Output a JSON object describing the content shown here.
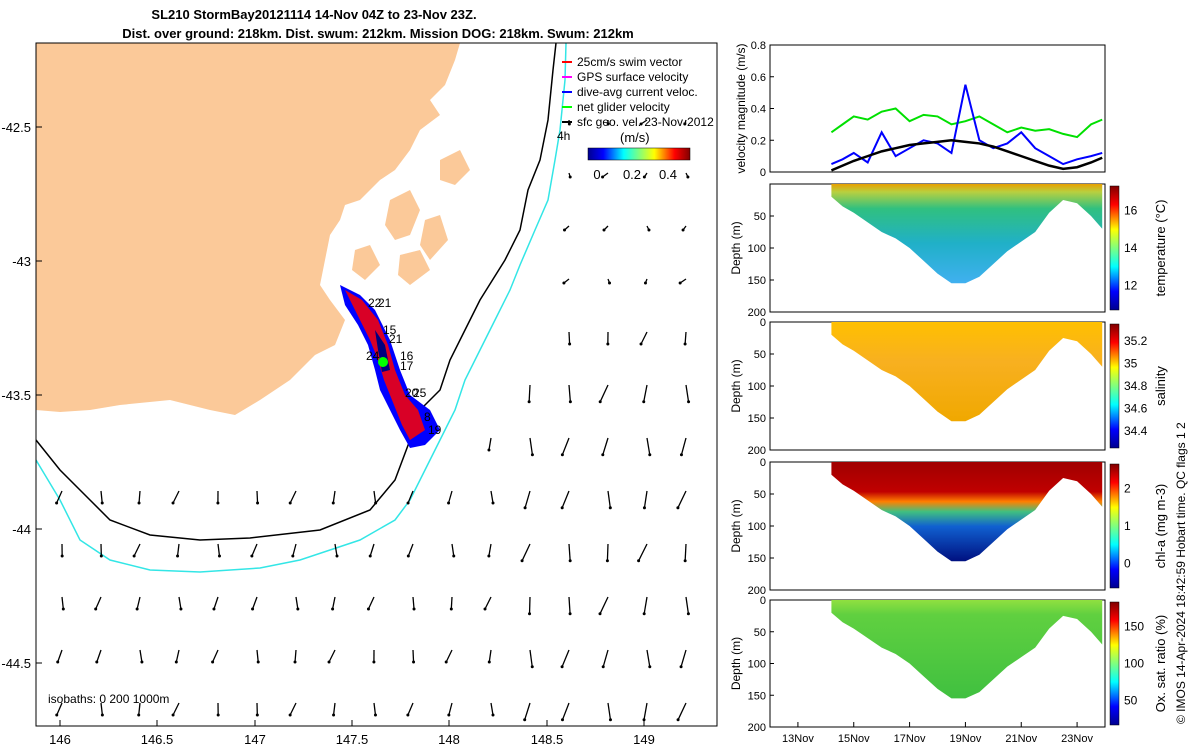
{
  "title": {
    "line1": "SL210 StormBay20121114 14-Nov 04Z to 23-Nov 23Z.",
    "line2": "Dist. over ground: 218km. Dist. swum: 212km. Mission DOG: 218km. Swum: 212km"
  },
  "map": {
    "legend": [
      "25cm/s swim vector",
      "GPS surface velocity",
      "dive-avg current veloc.",
      "net glider velocity",
      "sfc geo. vel. 23-Nov-2012"
    ],
    "legend_colors": [
      "#ff0000",
      "#ff00ff",
      "#0000ff",
      "#00ff00",
      "#000000"
    ],
    "colorbar_unit": "(m/s)",
    "colorbar_ticks": [
      "0",
      "0.2",
      "0.4"
    ],
    "isobath_label": "isobaths: 0   200  1000m",
    "contour_label": "4h",
    "x_ticks": [
      "146",
      "146.5",
      "147",
      "147.5",
      "148",
      "148.5",
      "149"
    ],
    "y_ticks": [
      "-42.5",
      "-43",
      "-43.5",
      "-44",
      "-44.5"
    ],
    "track_labels": [
      "22",
      "21",
      "15",
      "21",
      "24",
      "16",
      "17",
      "20",
      "25",
      "8",
      "19"
    ],
    "land_color": "#fbc999",
    "shelf_color": "#33e6e6"
  },
  "footer": "© IMOS 14-Apr-2024 18:42:59 Hobart time. QC flags 1  2",
  "chart_data": [
    {
      "type": "line",
      "ylabel": "velocity magnitude (m/s)",
      "ylim": [
        0,
        0.8
      ],
      "yticks": [
        "0",
        "0.2",
        "0.4",
        "0.6",
        "0.8"
      ],
      "x": [
        14.2,
        14.6,
        15.0,
        15.5,
        16.0,
        16.5,
        17.0,
        17.5,
        18.0,
        18.5,
        19.0,
        19.5,
        20.0,
        20.5,
        21.0,
        21.5,
        22.0,
        22.5,
        23.0,
        23.5,
        23.9
      ],
      "series": [
        {
          "color": "#00e000",
          "values": [
            0.25,
            0.3,
            0.35,
            0.33,
            0.38,
            0.4,
            0.32,
            0.36,
            0.35,
            0.3,
            0.32,
            0.35,
            0.3,
            0.25,
            0.28,
            0.26,
            0.27,
            0.24,
            0.22,
            0.3,
            0.33
          ]
        },
        {
          "color": "#0000ff",
          "values": [
            0.05,
            0.08,
            0.12,
            0.06,
            0.25,
            0.1,
            0.15,
            0.2,
            0.18,
            0.12,
            0.55,
            0.2,
            0.15,
            0.18,
            0.25,
            0.15,
            0.1,
            0.05,
            0.08,
            0.1,
            0.12
          ]
        },
        {
          "color": "#000000",
          "values": [
            0.01,
            0.04,
            0.07,
            0.1,
            0.13,
            0.15,
            0.17,
            0.18,
            0.19,
            0.2,
            0.19,
            0.18,
            0.16,
            0.13,
            0.1,
            0.07,
            0.04,
            0.02,
            0.03,
            0.06,
            0.09
          ]
        }
      ]
    },
    {
      "type": "heatmap",
      "ylabel": "Depth (m)",
      "yticks": [
        "50",
        "100",
        "150",
        "200"
      ],
      "colorbar_label": "temperature (°C)",
      "colorbar_ticks": [
        "12",
        "14",
        "16"
      ],
      "variable": "temperature",
      "x": [
        14.2,
        14.6,
        15.0,
        15.5,
        16.0,
        16.5,
        17.0,
        17.5,
        18.0,
        18.5,
        19.0,
        19.5,
        20.0,
        20.5,
        21.0,
        21.5,
        22.0,
        22.5,
        23.0,
        23.5,
        23.9
      ],
      "max_depth": [
        20,
        35,
        45,
        60,
        75,
        85,
        100,
        120,
        140,
        155,
        155,
        145,
        125,
        105,
        90,
        75,
        45,
        25,
        30,
        50,
        70
      ]
    },
    {
      "type": "heatmap",
      "ylabel": "Depth (m)",
      "yticks": [
        "0",
        "50",
        "100",
        "150",
        "200"
      ],
      "colorbar_label": "salinity",
      "colorbar_ticks": [
        "34.4",
        "34.6",
        "34.8",
        "35",
        "35.2"
      ],
      "variable": "salinity"
    },
    {
      "type": "heatmap",
      "ylabel": "Depth (m)",
      "yticks": [
        "0",
        "50",
        "100",
        "150",
        "200"
      ],
      "colorbar_label": "chl-a (mg m-3)",
      "colorbar_ticks": [
        "0",
        "1",
        "2"
      ],
      "variable": "chl-a"
    },
    {
      "type": "heatmap",
      "ylabel": "Depth (m)",
      "yticks": [
        "0",
        "50",
        "100",
        "150",
        "200"
      ],
      "colorbar_label": "Ox. sat. ratio (%)",
      "colorbar_ticks": [
        "50",
        "100",
        "150"
      ],
      "variable": "oxygen",
      "x_ticks": [
        "13Nov",
        "15Nov",
        "17Nov",
        "19Nov",
        "21Nov",
        "23Nov"
      ]
    }
  ]
}
